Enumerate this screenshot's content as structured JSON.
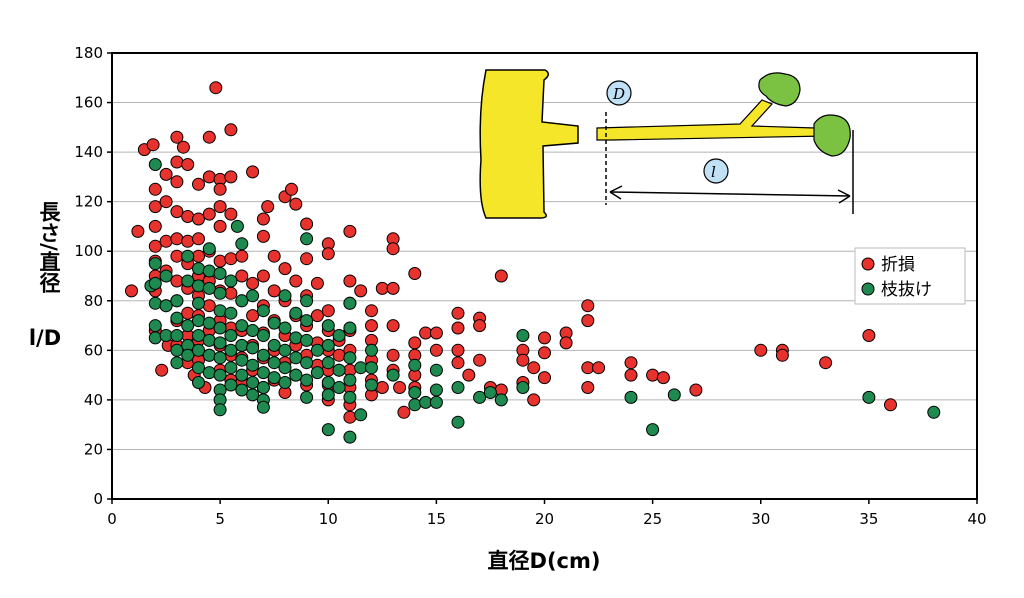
{
  "chart_data": {
    "type": "scatter",
    "xlabel": "直径D(cm)",
    "ylabel_top": "長さ/直径",
    "ylabel_bottom": "l/D",
    "xlim": [
      0,
      40
    ],
    "ylim": [
      0,
      180
    ],
    "x_ticks": [
      0,
      5,
      10,
      15,
      20,
      25,
      30,
      35,
      40
    ],
    "y_ticks": [
      0,
      20,
      40,
      60,
      80,
      100,
      120,
      140,
      160,
      180
    ],
    "grid": "horizontal",
    "legend_position": "right",
    "series": [
      {
        "name": "折損",
        "color": "#e8322d",
        "points": [
          [
            0.9,
            84
          ],
          [
            1.2,
            108
          ],
          [
            1.5,
            141
          ],
          [
            1.9,
            143
          ],
          [
            2,
            125
          ],
          [
            2,
            118
          ],
          [
            2,
            110
          ],
          [
            2,
            102
          ],
          [
            2,
            96
          ],
          [
            2,
            90
          ],
          [
            2,
            84
          ],
          [
            2,
            68
          ],
          [
            2.3,
            52
          ],
          [
            2.5,
            131
          ],
          [
            2.5,
            120
          ],
          [
            2.5,
            104
          ],
          [
            2.5,
            92
          ],
          [
            2.5,
            78
          ],
          [
            2.6,
            62
          ],
          [
            3,
            146
          ],
          [
            3,
            136
          ],
          [
            3,
            128
          ],
          [
            3,
            116
          ],
          [
            3,
            105
          ],
          [
            3,
            98
          ],
          [
            3,
            88
          ],
          [
            3,
            80
          ],
          [
            3,
            72
          ],
          [
            3,
            62
          ],
          [
            3.3,
            142
          ],
          [
            3.5,
            135
          ],
          [
            3.5,
            114
          ],
          [
            3.5,
            104
          ],
          [
            3.5,
            95
          ],
          [
            3.5,
            85
          ],
          [
            3.5,
            75
          ],
          [
            3.5,
            66
          ],
          [
            3.5,
            55
          ],
          [
            3.8,
            50
          ],
          [
            4,
            127
          ],
          [
            4,
            113
          ],
          [
            4,
            105
          ],
          [
            4,
            98
          ],
          [
            4,
            90
          ],
          [
            4,
            82
          ],
          [
            4,
            74
          ],
          [
            4,
            64
          ],
          [
            4,
            56
          ],
          [
            4.3,
            45
          ],
          [
            4.5,
            146
          ],
          [
            4.5,
            130
          ],
          [
            4.5,
            115
          ],
          [
            4.5,
            100
          ],
          [
            4.5,
            88
          ],
          [
            4.5,
            78
          ],
          [
            4.5,
            68
          ],
          [
            4.5,
            58
          ],
          [
            4.8,
            166
          ],
          [
            5,
            129
          ],
          [
            5,
            125
          ],
          [
            5,
            118
          ],
          [
            5,
            110
          ],
          [
            5,
            96
          ],
          [
            5,
            84
          ],
          [
            5,
            72
          ],
          [
            5,
            62
          ],
          [
            5,
            52
          ],
          [
            5.5,
            149
          ],
          [
            5.5,
            130
          ],
          [
            5.5,
            115
          ],
          [
            5.5,
            97
          ],
          [
            5.5,
            83
          ],
          [
            5.5,
            69
          ],
          [
            5.5,
            58
          ],
          [
            5.5,
            48
          ],
          [
            6,
            98
          ],
          [
            6,
            90
          ],
          [
            6,
            80
          ],
          [
            6,
            68
          ],
          [
            6,
            57
          ],
          [
            6,
            47
          ],
          [
            6.5,
            132
          ],
          [
            6.5,
            87
          ],
          [
            6.5,
            74
          ],
          [
            6.5,
            62
          ],
          [
            6.5,
            52
          ],
          [
            7,
            113
          ],
          [
            7,
            106
          ],
          [
            7,
            90
          ],
          [
            7,
            78
          ],
          [
            7,
            67
          ],
          [
            7,
            57
          ],
          [
            7,
            45
          ],
          [
            7.2,
            118
          ],
          [
            7.5,
            98
          ],
          [
            7.5,
            84
          ],
          [
            7.5,
            72
          ],
          [
            7.5,
            60
          ],
          [
            7.5,
            48
          ],
          [
            8,
            122
          ],
          [
            8,
            93
          ],
          [
            8,
            80
          ],
          [
            8,
            66
          ],
          [
            8,
            55
          ],
          [
            8,
            43
          ],
          [
            8.3,
            125
          ],
          [
            8.5,
            119
          ],
          [
            8.5,
            88
          ],
          [
            8.5,
            74
          ],
          [
            8.5,
            62
          ],
          [
            8.5,
            50
          ],
          [
            9,
            111
          ],
          [
            9,
            97
          ],
          [
            9,
            82
          ],
          [
            9,
            70
          ],
          [
            9,
            58
          ],
          [
            9,
            46
          ],
          [
            9.5,
            87
          ],
          [
            9.5,
            74
          ],
          [
            9.5,
            63
          ],
          [
            9.5,
            54
          ],
          [
            10,
            103
          ],
          [
            10,
            99
          ],
          [
            10,
            76
          ],
          [
            10,
            68
          ],
          [
            10,
            60
          ],
          [
            10,
            52
          ],
          [
            10,
            46
          ],
          [
            10,
            40
          ],
          [
            10.5,
            64
          ],
          [
            10.5,
            58
          ],
          [
            10.5,
            52
          ],
          [
            11,
            108
          ],
          [
            11,
            88
          ],
          [
            11,
            79
          ],
          [
            11,
            68
          ],
          [
            11,
            60
          ],
          [
            11,
            52
          ],
          [
            11,
            45
          ],
          [
            11,
            38
          ],
          [
            11,
            33
          ],
          [
            11.5,
            84
          ],
          [
            12,
            76
          ],
          [
            12,
            70
          ],
          [
            12,
            64
          ],
          [
            12,
            56
          ],
          [
            12,
            48
          ],
          [
            12,
            42
          ],
          [
            12.5,
            85
          ],
          [
            12.5,
            45
          ],
          [
            13,
            105
          ],
          [
            13,
            101
          ],
          [
            13,
            85
          ],
          [
            13,
            70
          ],
          [
            13,
            58
          ],
          [
            13,
            52
          ],
          [
            13.3,
            45
          ],
          [
            13.5,
            35
          ],
          [
            14,
            91
          ],
          [
            14,
            63
          ],
          [
            14,
            58
          ],
          [
            14,
            50
          ],
          [
            14,
            45
          ],
          [
            14.5,
            67
          ],
          [
            15,
            67
          ],
          [
            15,
            60
          ],
          [
            16,
            75
          ],
          [
            16,
            69
          ],
          [
            16,
            60
          ],
          [
            16,
            55
          ],
          [
            16.5,
            50
          ],
          [
            17,
            73
          ],
          [
            17,
            70
          ],
          [
            17,
            56
          ],
          [
            17.5,
            45
          ],
          [
            18,
            90
          ],
          [
            18,
            44
          ],
          [
            19,
            60
          ],
          [
            19,
            56
          ],
          [
            19,
            47
          ],
          [
            19.5,
            53
          ],
          [
            19.5,
            40
          ],
          [
            20,
            65
          ],
          [
            20,
            59
          ],
          [
            20,
            49
          ],
          [
            21,
            67
          ],
          [
            21,
            63
          ],
          [
            22,
            78
          ],
          [
            22,
            72
          ],
          [
            22,
            53
          ],
          [
            22,
            45
          ],
          [
            22.5,
            53
          ],
          [
            24,
            55
          ],
          [
            24,
            50
          ],
          [
            25,
            50
          ],
          [
            25.5,
            49
          ],
          [
            27,
            44
          ],
          [
            30,
            60
          ],
          [
            31,
            60
          ],
          [
            31,
            58
          ],
          [
            33,
            55
          ],
          [
            35,
            66
          ],
          [
            36,
            38
          ]
        ]
      },
      {
        "name": "枝抜け",
        "color": "#1e8a50",
        "points": [
          [
            1.8,
            86
          ],
          [
            2,
            135
          ],
          [
            2,
            95
          ],
          [
            2,
            87
          ],
          [
            2,
            79
          ],
          [
            2,
            70
          ],
          [
            2,
            65
          ],
          [
            2.5,
            90
          ],
          [
            2.5,
            78
          ],
          [
            2.5,
            66
          ],
          [
            3,
            80
          ],
          [
            3,
            73
          ],
          [
            3,
            66
          ],
          [
            3,
            60
          ],
          [
            3,
            55
          ],
          [
            3.5,
            98
          ],
          [
            3.5,
            88
          ],
          [
            3.5,
            70
          ],
          [
            3.5,
            62
          ],
          [
            3.5,
            58
          ],
          [
            4,
            93
          ],
          [
            4,
            86
          ],
          [
            4,
            79
          ],
          [
            4,
            72
          ],
          [
            4,
            66
          ],
          [
            4,
            60
          ],
          [
            4,
            53
          ],
          [
            4,
            47
          ],
          [
            4.5,
            101
          ],
          [
            4.5,
            92
          ],
          [
            4.5,
            85
          ],
          [
            4.5,
            71
          ],
          [
            4.5,
            64
          ],
          [
            4.5,
            58
          ],
          [
            4.5,
            51
          ],
          [
            5,
            91
          ],
          [
            5,
            83
          ],
          [
            5,
            76
          ],
          [
            5,
            69
          ],
          [
            5,
            63
          ],
          [
            5,
            57
          ],
          [
            5,
            50
          ],
          [
            5,
            44
          ],
          [
            5,
            40
          ],
          [
            5,
            36
          ],
          [
            5.5,
            88
          ],
          [
            5.5,
            75
          ],
          [
            5.5,
            66
          ],
          [
            5.5,
            60
          ],
          [
            5.5,
            53
          ],
          [
            5.5,
            46
          ],
          [
            5.8,
            110
          ],
          [
            6,
            103
          ],
          [
            6,
            80
          ],
          [
            6,
            70
          ],
          [
            6,
            62
          ],
          [
            6,
            56
          ],
          [
            6,
            50
          ],
          [
            6,
            44
          ],
          [
            6.5,
            82
          ],
          [
            6.5,
            68
          ],
          [
            6.5,
            61
          ],
          [
            6.5,
            54
          ],
          [
            6.5,
            47
          ],
          [
            6.5,
            42
          ],
          [
            7,
            76
          ],
          [
            7,
            66
          ],
          [
            7,
            58
          ],
          [
            7,
            51
          ],
          [
            7,
            45
          ],
          [
            7,
            40
          ],
          [
            7,
            37
          ],
          [
            7.5,
            71
          ],
          [
            7.5,
            62
          ],
          [
            7.5,
            55
          ],
          [
            7.5,
            49
          ],
          [
            8,
            82
          ],
          [
            8,
            69
          ],
          [
            8,
            60
          ],
          [
            8,
            53
          ],
          [
            8,
            47
          ],
          [
            8.5,
            75
          ],
          [
            8.5,
            65
          ],
          [
            8.5,
            57
          ],
          [
            8.5,
            50
          ],
          [
            9,
            105
          ],
          [
            9,
            80
          ],
          [
            9,
            72
          ],
          [
            9,
            64
          ],
          [
            9,
            55
          ],
          [
            9,
            48
          ],
          [
            9,
            41
          ],
          [
            9.5,
            60
          ],
          [
            9.5,
            51
          ],
          [
            10,
            70
          ],
          [
            10,
            62
          ],
          [
            10,
            55
          ],
          [
            10,
            47
          ],
          [
            10,
            42
          ],
          [
            10,
            28
          ],
          [
            10.5,
            66
          ],
          [
            10.5,
            52
          ],
          [
            10.5,
            45
          ],
          [
            11,
            79
          ],
          [
            11,
            69
          ],
          [
            11,
            57
          ],
          [
            11,
            48
          ],
          [
            11,
            41
          ],
          [
            11,
            25
          ],
          [
            11.5,
            53
          ],
          [
            11.5,
            34
          ],
          [
            12,
            60
          ],
          [
            12,
            53
          ],
          [
            12,
            46
          ],
          [
            13,
            50
          ],
          [
            14,
            54
          ],
          [
            14,
            43
          ],
          [
            14,
            38
          ],
          [
            14.5,
            39
          ],
          [
            15,
            52
          ],
          [
            15,
            44
          ],
          [
            15,
            39
          ],
          [
            16,
            45
          ],
          [
            16,
            31
          ],
          [
            17,
            41
          ],
          [
            17.5,
            43
          ],
          [
            18,
            40
          ],
          [
            19,
            66
          ],
          [
            19,
            45
          ],
          [
            24,
            41
          ],
          [
            25,
            28
          ],
          [
            26,
            42
          ],
          [
            35,
            41
          ],
          [
            38,
            35
          ]
        ]
      }
    ]
  }
}
